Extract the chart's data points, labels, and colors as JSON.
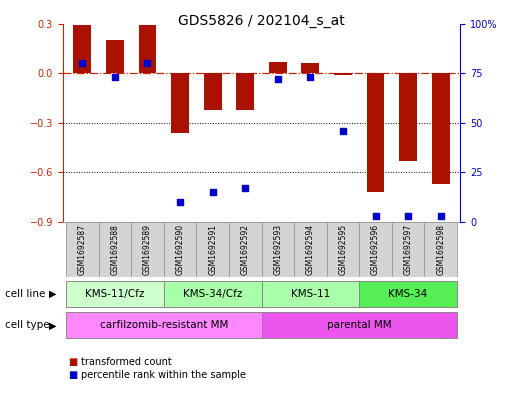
{
  "title": "GDS5826 / 202104_s_at",
  "samples": [
    "GSM1692587",
    "GSM1692588",
    "GSM1692589",
    "GSM1692590",
    "GSM1692591",
    "GSM1692592",
    "GSM1692593",
    "GSM1692594",
    "GSM1692595",
    "GSM1692596",
    "GSM1692597",
    "GSM1692598"
  ],
  "transformed_count": [
    0.29,
    0.2,
    0.29,
    -0.36,
    -0.22,
    -0.22,
    0.07,
    0.06,
    -0.01,
    -0.72,
    -0.53,
    -0.67
  ],
  "percentile_rank": [
    80,
    73,
    80,
    10,
    15,
    17,
    72,
    73,
    46,
    3,
    3,
    3
  ],
  "ylim_left": [
    -0.9,
    0.3
  ],
  "ylim_right": [
    0,
    100
  ],
  "yticks_left": [
    -0.9,
    -0.6,
    -0.3,
    0.0,
    0.3
  ],
  "yticks_right": [
    0,
    25,
    50,
    75,
    100
  ],
  "cell_line_groups": [
    {
      "label": "KMS-11/Cfz",
      "start": 0,
      "end": 3,
      "color": "#ccffcc"
    },
    {
      "label": "KMS-34/Cfz",
      "start": 3,
      "end": 6,
      "color": "#aaffaa"
    },
    {
      "label": "KMS-11",
      "start": 6,
      "end": 9,
      "color": "#aaffaa"
    },
    {
      "label": "KMS-34",
      "start": 9,
      "end": 12,
      "color": "#55ee55"
    }
  ],
  "cell_type_groups": [
    {
      "label": "carfilzomib-resistant MM",
      "start": 0,
      "end": 6,
      "color": "#ff88ff"
    },
    {
      "label": "parental MM",
      "start": 6,
      "end": 12,
      "color": "#ee55ee"
    }
  ],
  "bar_color": "#aa1100",
  "dot_color": "#0000cc",
  "zero_line_color": "#cc2200",
  "grid_color": "#000000",
  "bg_color": "#ffffff",
  "title_fontsize": 10,
  "tick_fontsize": 7,
  "sample_fontsize": 5.5,
  "cell_fontsize": 7.5,
  "legend_fontsize": 7
}
